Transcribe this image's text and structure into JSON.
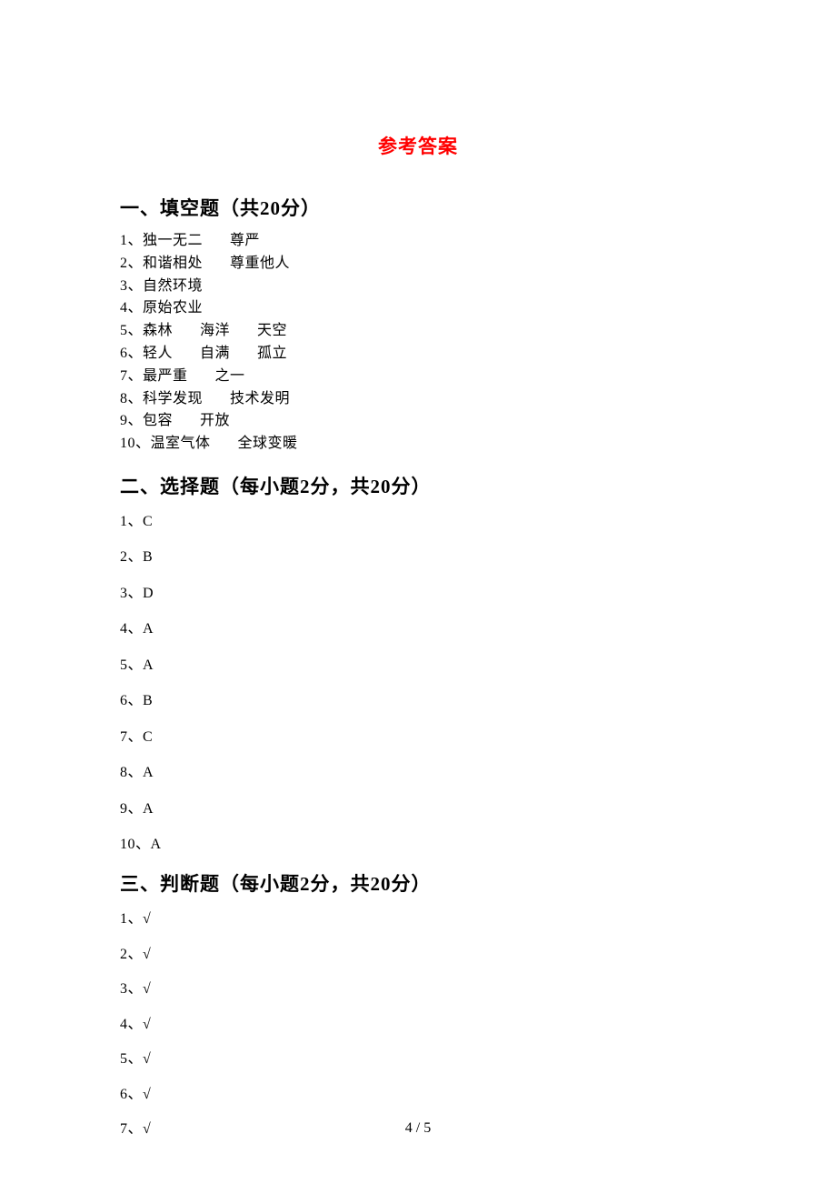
{
  "title": "参考答案",
  "title_color": "#ff0000",
  "title_fontsize": 21,
  "section_heading_fontsize": 21,
  "body_fontsize": 16,
  "text_color": "#000000",
  "background_color": "#ffffff",
  "page_number": "4 / 5",
  "sections": {
    "fill": {
      "heading": "一、填空题（共20分）",
      "items": [
        {
          "num": "1、",
          "parts": [
            "独一无二",
            "尊严"
          ]
        },
        {
          "num": "2、",
          "parts": [
            "和谐相处",
            "尊重他人"
          ]
        },
        {
          "num": "3、",
          "parts": [
            "自然环境"
          ]
        },
        {
          "num": "4、",
          "parts": [
            "原始农业"
          ]
        },
        {
          "num": "5、",
          "parts": [
            "森林",
            "海洋",
            "天空"
          ]
        },
        {
          "num": "6、",
          "parts": [
            "轻人",
            "自满",
            "孤立"
          ]
        },
        {
          "num": "7、",
          "parts": [
            "最严重",
            "之一"
          ]
        },
        {
          "num": "8、",
          "parts": [
            "科学发现",
            "技术发明"
          ]
        },
        {
          "num": "9、",
          "parts": [
            "包容",
            "开放"
          ]
        },
        {
          "num": "10、",
          "parts": [
            "温室气体",
            "全球变暖"
          ]
        }
      ]
    },
    "choice": {
      "heading": "二、选择题（每小题2分，共20分）",
      "items": [
        {
          "num": "1、",
          "ans": "C"
        },
        {
          "num": "2、",
          "ans": "B"
        },
        {
          "num": "3、",
          "ans": "D"
        },
        {
          "num": "4、",
          "ans": "A"
        },
        {
          "num": "5、",
          "ans": "A"
        },
        {
          "num": "6、",
          "ans": "B"
        },
        {
          "num": "7、",
          "ans": "C"
        },
        {
          "num": "8、",
          "ans": "A"
        },
        {
          "num": "9、",
          "ans": "A"
        },
        {
          "num": "10、",
          "ans": "A"
        }
      ]
    },
    "judge": {
      "heading": "三、判断题（每小题2分，共20分）",
      "items": [
        {
          "num": "1、",
          "ans": "√"
        },
        {
          "num": "2、",
          "ans": "√"
        },
        {
          "num": "3、",
          "ans": "√"
        },
        {
          "num": "4、",
          "ans": "√"
        },
        {
          "num": "5、",
          "ans": "√"
        },
        {
          "num": "6、",
          "ans": "√"
        },
        {
          "num": "7、",
          "ans": "√"
        }
      ]
    }
  }
}
